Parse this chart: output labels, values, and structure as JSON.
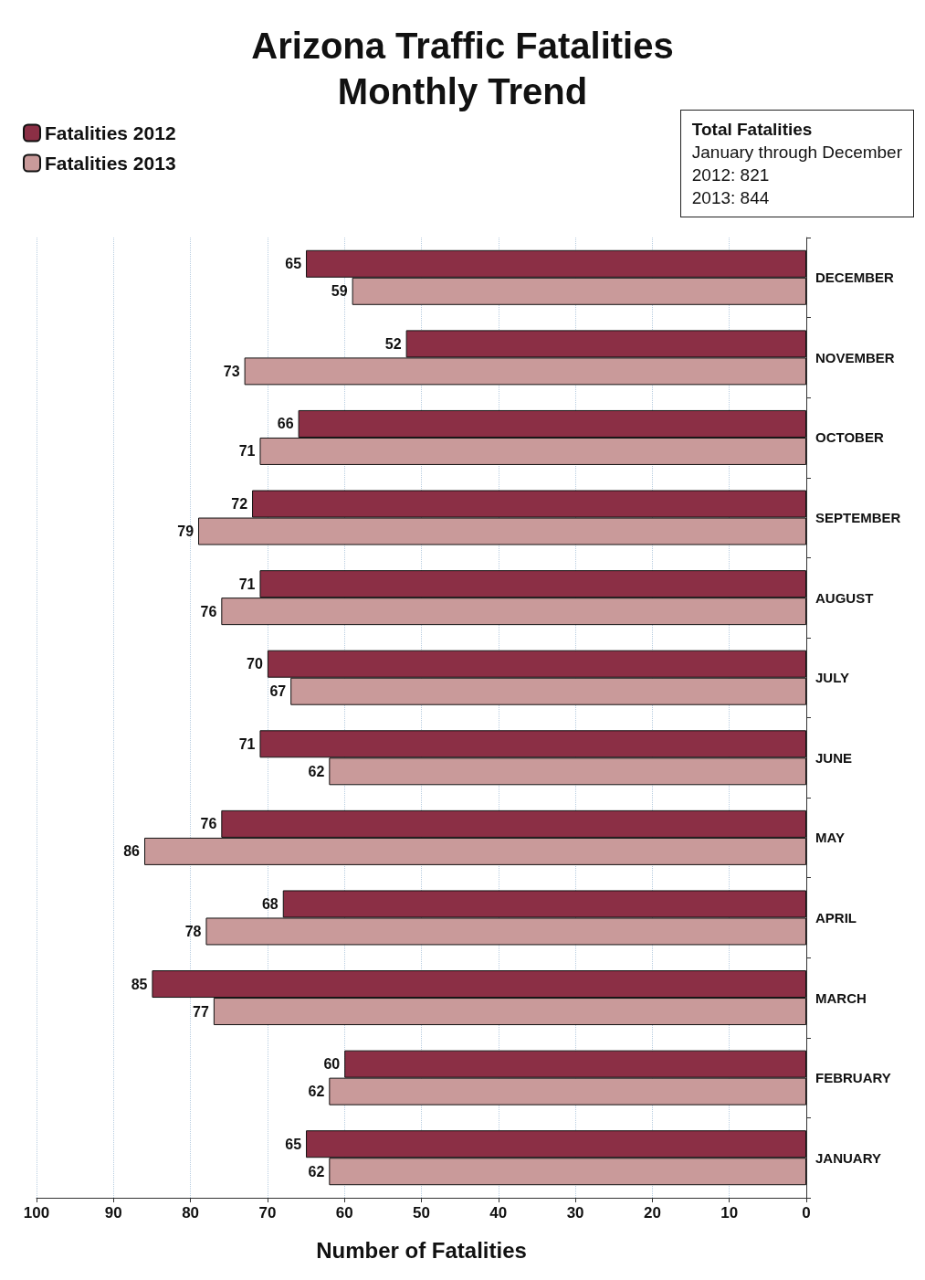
{
  "chart_data": {
    "type": "bar",
    "orientation": "horizontal",
    "title": "Arizona Traffic Fatalities\nMonthly Trend",
    "xlabel": "Number of Fatalities",
    "categories": [
      "DECEMBER",
      "NOVEMBER",
      "OCTOBER",
      "SEPTEMBER",
      "AUGUST",
      "JULY",
      "JUNE",
      "MAY",
      "APRIL",
      "MARCH",
      "FEBRUARY",
      "JANUARY"
    ],
    "series": [
      {
        "name": "Fatalities 2012",
        "color": "#8b2f45",
        "values": [
          65,
          52,
          66,
          72,
          71,
          70,
          71,
          76,
          68,
          85,
          60,
          65
        ]
      },
      {
        "name": "Fatalities 2013",
        "color": "#c99a9a",
        "values": [
          59,
          73,
          71,
          79,
          76,
          67,
          62,
          86,
          78,
          77,
          62,
          62
        ]
      }
    ],
    "xlim": [
      100,
      0
    ],
    "xticks": [
      100,
      90,
      80,
      70,
      60,
      50,
      40,
      30,
      20,
      10,
      0
    ],
    "grid": "x",
    "legend": "top left",
    "data_labels": true,
    "annotations": [
      "Total Fatalities",
      "January through December",
      "2012: 821",
      "2013: 844"
    ]
  }
}
